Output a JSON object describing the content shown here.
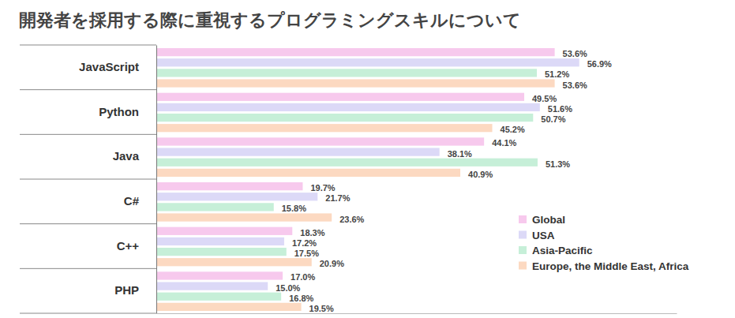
{
  "chart_data": {
    "type": "bar",
    "title": "開発者を採用する際に重視するプログラミングスキルについて",
    "orientation": "horizontal",
    "categories": [
      "JavaScript",
      "Python",
      "Java",
      "C#",
      "C++",
      "PHP"
    ],
    "series": [
      {
        "name": "Global",
        "color": "#f7c9ed",
        "values": [
          53.6,
          49.5,
          44.1,
          19.7,
          18.3,
          17.0
        ],
        "value_labels": [
          "53.6%",
          "49.5%",
          "44.1%",
          "19.7%",
          "18.3%",
          "17.0%"
        ]
      },
      {
        "name": "USA",
        "color": "#dcd9f7",
        "values": [
          56.9,
          51.6,
          38.1,
          21.7,
          17.2,
          15.0
        ],
        "value_labels": [
          "56.9%",
          "51.6%",
          "38.1%",
          "21.7%",
          "17.2%",
          "15.0%"
        ]
      },
      {
        "name": "Asia-Pacific",
        "color": "#c6efd8",
        "values": [
          51.2,
          50.7,
          51.3,
          15.8,
          17.5,
          16.8
        ],
        "value_labels": [
          "51.2%",
          "50.7%",
          "51.3%",
          "15.8%",
          "17.5%",
          "16.8%"
        ]
      },
      {
        "name": "Europe, the Middle East, Africa",
        "color": "#fcd9c1",
        "values": [
          53.6,
          45.2,
          40.9,
          23.6,
          20.9,
          19.5
        ],
        "value_labels": [
          "53.6%",
          "45.2%",
          "40.9%",
          "23.6%",
          "20.9%",
          "19.5%"
        ]
      }
    ],
    "xlim": [
      0,
      70
    ],
    "tick_labels": false,
    "grid": false,
    "legend": "bottom-right",
    "data_labels": true
  }
}
